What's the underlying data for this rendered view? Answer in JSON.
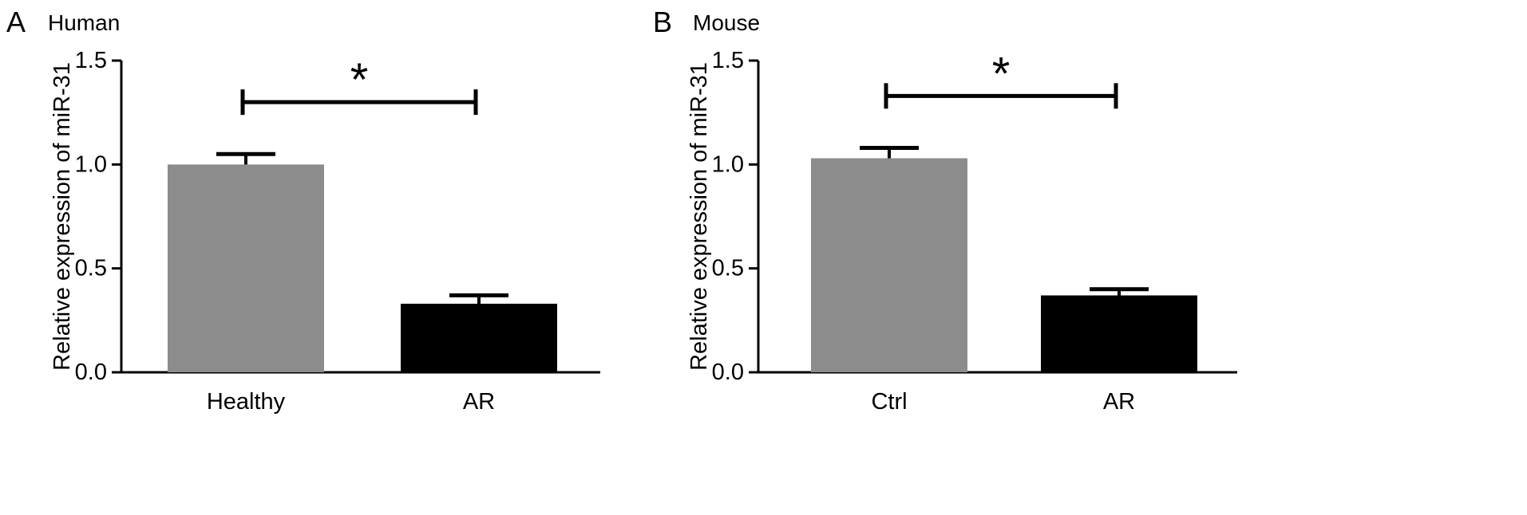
{
  "chart_data": [
    {
      "type": "bar",
      "panel_letter": "A",
      "title": "Human",
      "ylabel": "Relative expression of miR-31",
      "xlabel": "",
      "ylim": [
        0,
        1.5
      ],
      "yticks": [
        "0.0",
        "0.5",
        "1.0",
        "1.5"
      ],
      "categories": [
        "Healthy",
        "AR"
      ],
      "values": [
        1.0,
        0.33
      ],
      "error": [
        0.05,
        0.04
      ],
      "bar_colors": [
        "#8c8c8c",
        "#000000"
      ],
      "grid": false,
      "significance": {
        "from": "Healthy",
        "to": "AR",
        "level": 1.3,
        "label": "*"
      }
    },
    {
      "type": "bar",
      "panel_letter": "B",
      "title": "Mouse",
      "ylabel": "Relative expression of miR-31",
      "xlabel": "",
      "ylim": [
        0,
        1.5
      ],
      "yticks": [
        "0.0",
        "0.5",
        "1.0",
        "1.5"
      ],
      "categories": [
        "Ctrl",
        "AR"
      ],
      "values": [
        1.03,
        0.37
      ],
      "error": [
        0.05,
        0.03
      ],
      "bar_colors": [
        "#8c8c8c",
        "#000000"
      ],
      "grid": false,
      "significance": {
        "from": "Ctrl",
        "to": "AR",
        "level": 1.33,
        "label": "*"
      }
    }
  ]
}
